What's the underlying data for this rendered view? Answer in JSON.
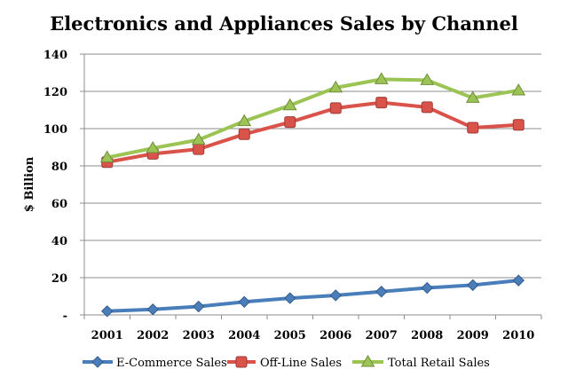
{
  "chart_data": {
    "type": "line",
    "title": "Electronics and Appliances Sales by Channel",
    "xlabel": "",
    "ylabel": "$ Billion",
    "x": [
      "2001",
      "2002",
      "2003",
      "2004",
      "2005",
      "2006",
      "2007",
      "2008",
      "2009",
      "2010"
    ],
    "ylim": [
      0,
      140
    ],
    "yticks": [
      0,
      20,
      40,
      60,
      80,
      100,
      120,
      140
    ],
    "ytick_labels": [
      "-",
      "20",
      "40",
      "60",
      "80",
      "100",
      "120",
      "140"
    ],
    "grid": true,
    "legend_position": "bottom",
    "series": [
      {
        "name": "E-Commerce Sales",
        "color": "#4a7ebb",
        "marker": "diamond",
        "values": [
          2,
          3,
          4.5,
          7,
          9,
          10.5,
          12.5,
          14.5,
          16,
          18.5
        ]
      },
      {
        "name": "Off-Line Sales",
        "color": "#d9534a",
        "marker": "square",
        "values": [
          82,
          86.5,
          89,
          97,
          103.5,
          111,
          114,
          111.5,
          100.5,
          102
        ]
      },
      {
        "name": "Total Retail Sales",
        "color": "#9bc455",
        "marker": "triangle",
        "values": [
          84.5,
          89.5,
          94,
          104,
          112.5,
          122,
          126.5,
          126,
          116.5,
          120.5
        ]
      }
    ]
  }
}
